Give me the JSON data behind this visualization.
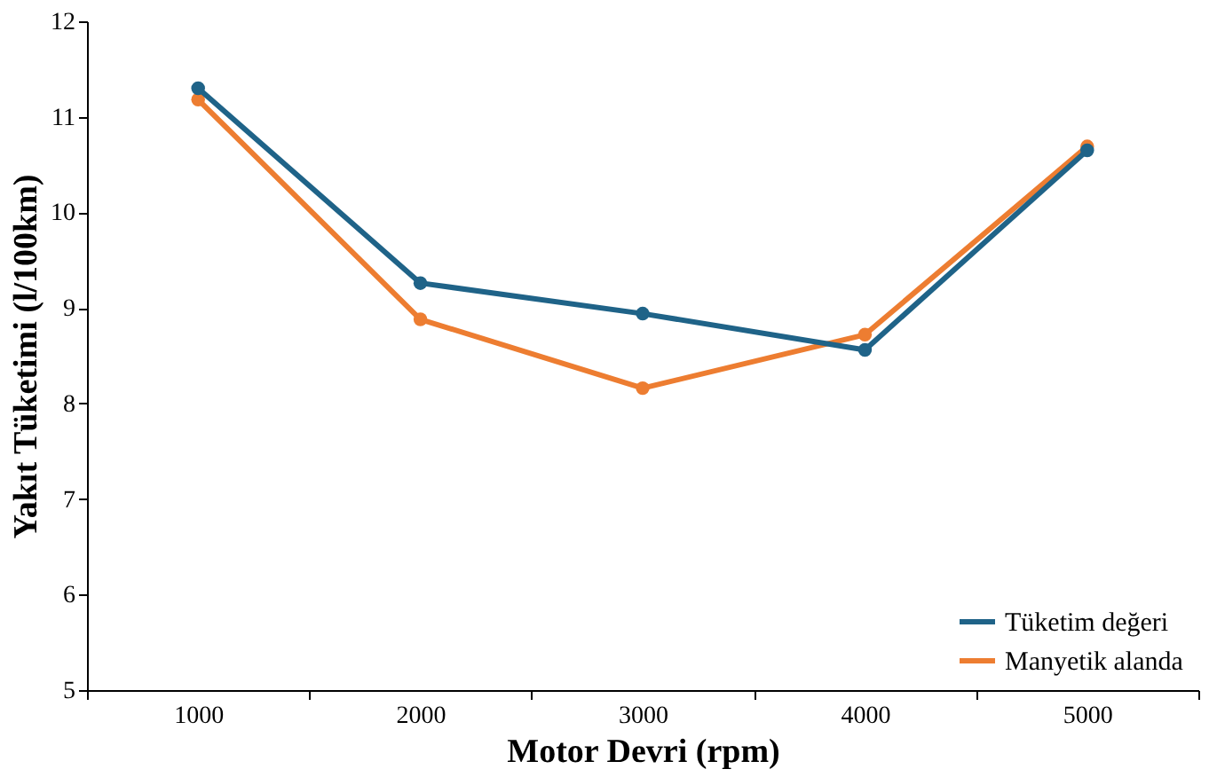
{
  "chart_data": {
    "type": "line",
    "xlabel": "Motor Devri (rpm)",
    "ylabel": "Yakıt Tüketimi (l/100km)",
    "categories": [
      "1000",
      "2000",
      "3000",
      "4000",
      "5000"
    ],
    "series": [
      {
        "name": "Tüketim değeri",
        "color": "#1f6388",
        "values": [
          11.3,
          9.26,
          8.94,
          8.56,
          10.65
        ]
      },
      {
        "name": "Manyetik alanda",
        "color": "#ed7d31",
        "values": [
          11.18,
          8.88,
          8.16,
          8.72,
          10.69
        ]
      }
    ],
    "ylim": [
      5,
      12
    ],
    "yticks": [
      5,
      6,
      7,
      8,
      9,
      10,
      11,
      12
    ],
    "grid": false,
    "legend": "bottom right",
    "marker": "circle",
    "line_style": "solid"
  }
}
